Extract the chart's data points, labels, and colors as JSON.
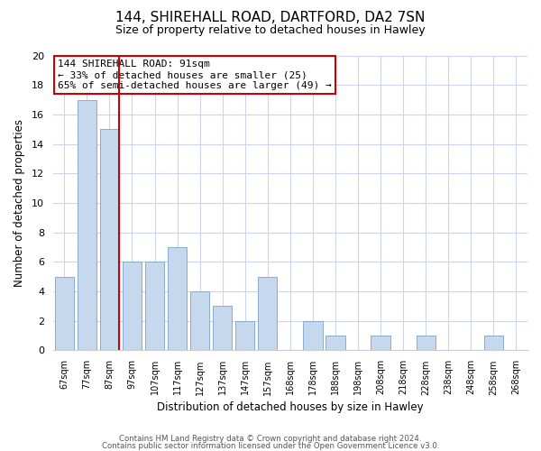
{
  "title": "144, SHIREHALL ROAD, DARTFORD, DA2 7SN",
  "subtitle": "Size of property relative to detached houses in Hawley",
  "xlabel": "Distribution of detached houses by size in Hawley",
  "ylabel": "Number of detached properties",
  "bar_labels": [
    "67sqm",
    "77sqm",
    "87sqm",
    "97sqm",
    "107sqm",
    "117sqm",
    "127sqm",
    "137sqm",
    "147sqm",
    "157sqm",
    "168sqm",
    "178sqm",
    "188sqm",
    "198sqm",
    "208sqm",
    "218sqm",
    "228sqm",
    "238sqm",
    "248sqm",
    "258sqm",
    "268sqm"
  ],
  "bar_values": [
    5,
    17,
    15,
    6,
    6,
    7,
    4,
    3,
    2,
    5,
    0,
    2,
    1,
    0,
    1,
    0,
    1,
    0,
    0,
    1,
    0
  ],
  "bar_color": "#c5d8ed",
  "bar_edge_color": "#7aa3c8",
  "vline_color": "#cc0000",
  "vline_pos": 2.43,
  "ylim": [
    0,
    20
  ],
  "yticks": [
    0,
    2,
    4,
    6,
    8,
    10,
    12,
    14,
    16,
    18,
    20
  ],
  "annotation_title": "144 SHIREHALL ROAD: 91sqm",
  "annotation_line1": "← 33% of detached houses are smaller (25)",
  "annotation_line2": "65% of semi-detached houses are larger (49) →",
  "annotation_box_color": "#ffffff",
  "annotation_box_edge": "#cc0000",
  "footer_line1": "Contains HM Land Registry data © Crown copyright and database right 2024.",
  "footer_line2": "Contains public sector information licensed under the Open Government Licence v3.0.",
  "bg_color": "#ffffff",
  "grid_color": "#ccd6e8"
}
